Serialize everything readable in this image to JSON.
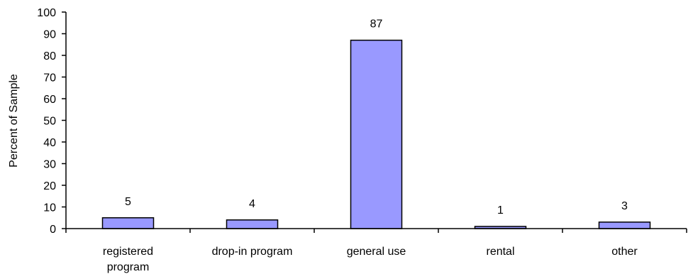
{
  "chart_data": {
    "type": "bar",
    "categories": [
      [
        "registered",
        "program"
      ],
      [
        "drop-in program"
      ],
      [
        "general use"
      ],
      [
        "rental"
      ],
      [
        "other"
      ]
    ],
    "series": [
      {
        "values": [
          5,
          4,
          87,
          1,
          3
        ]
      }
    ],
    "data_labels": [
      "5",
      "4",
      "87",
      "1",
      "3"
    ],
    "title": "",
    "xlabel": "",
    "ylabel": "Percent of Sample",
    "ylim": [
      0,
      100
    ],
    "yticks": [
      "0",
      "10",
      "20",
      "30",
      "40",
      "50",
      "60",
      "70",
      "80",
      "90",
      "100"
    ],
    "grid": false,
    "legend": "none",
    "colors": {
      "bar_fill": "#9999ff",
      "bar_stroke": "#000000",
      "axis": "#000000"
    }
  }
}
